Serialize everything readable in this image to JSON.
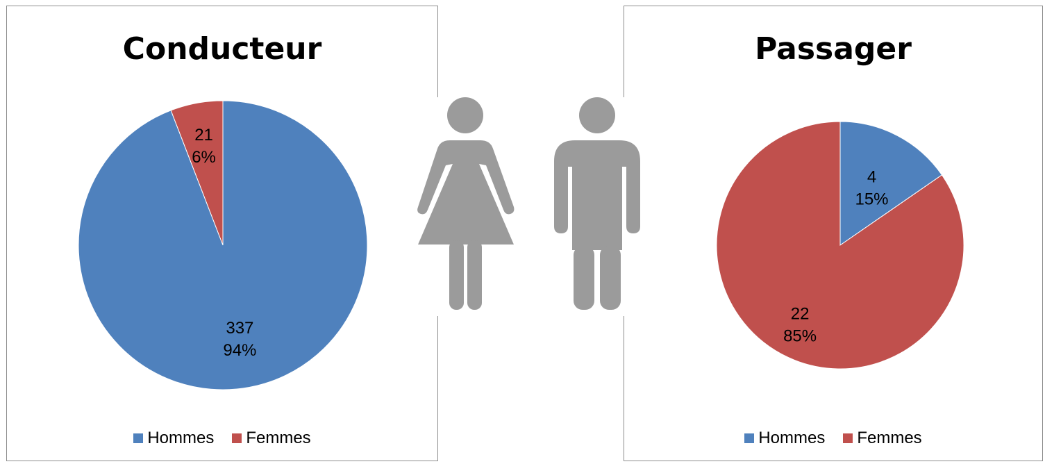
{
  "colors": {
    "hommes": "#4F81BD",
    "femmes": "#C0504D",
    "icon": "#9B9B9B"
  },
  "icons": [
    "woman-icon",
    "man-icon"
  ],
  "chart_data": [
    {
      "type": "pie",
      "title": "Conducteur",
      "slices": [
        {
          "name": "Femmes",
          "value": 21,
          "percent": "6%"
        },
        {
          "name": "Hommes",
          "value": 337,
          "percent": "94%"
        }
      ],
      "legend": {
        "position": "bottom",
        "entries": [
          "Hommes",
          "Femmes"
        ]
      }
    },
    {
      "type": "pie",
      "title": "Passager",
      "slices": [
        {
          "name": "Hommes",
          "value": 4,
          "percent": "15%"
        },
        {
          "name": "Femmes",
          "value": 22,
          "percent": "85%"
        }
      ],
      "legend": {
        "position": "bottom",
        "entries": [
          "Hommes",
          "Femmes"
        ]
      }
    }
  ]
}
